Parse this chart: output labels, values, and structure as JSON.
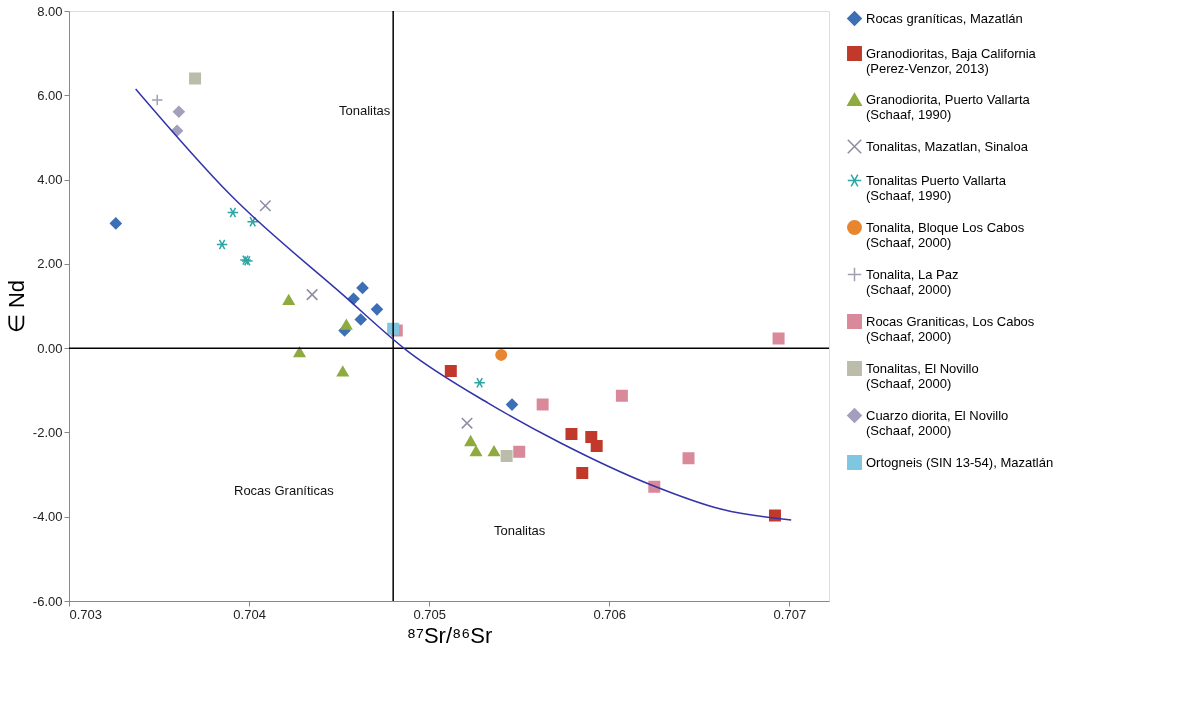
{
  "chart_data": {
    "type": "scatter",
    "xlabel": "⁸⁷Sr/⁸⁶Sr",
    "ylabel": "∈ Nd",
    "xlim": [
      0.703,
      0.70722
    ],
    "ylim": [
      -6,
      8
    ],
    "xticks": [
      {
        "value": 0.703,
        "label": "0.703"
      },
      {
        "value": 0.704,
        "label": "0.704"
      },
      {
        "value": 0.705,
        "label": "0.705"
      },
      {
        "value": 0.706,
        "label": "0.706"
      },
      {
        "value": 0.707,
        "label": "0.707"
      }
    ],
    "yticks": [
      {
        "value": -6,
        "label": "-6.00"
      },
      {
        "value": -4,
        "label": "-4.00"
      },
      {
        "value": -2,
        "label": "-2.00"
      },
      {
        "value": 0,
        "label": "0.00"
      },
      {
        "value": 2,
        "label": "2.00"
      },
      {
        "value": 4,
        "label": "4.00"
      },
      {
        "value": 6,
        "label": "6.00"
      },
      {
        "value": 8,
        "label": "8.00"
      }
    ],
    "grid": false,
    "legend": "right",
    "series": [
      {
        "name": "Rocas graníticas, Mazatlán",
        "color": "#3d6fb6",
        "marker": "diamond",
        "x": [
          0.70326,
          0.70463,
          0.70458,
          0.70471,
          0.70462,
          0.70453,
          0.70546
        ],
        "values": [
          2.96,
          1.43,
          1.17,
          0.92,
          0.68,
          0.42,
          -1.34
        ]
      },
      {
        "name": "Granodioritas, Baja California\n(Perez-Venzor, 2013)",
        "color": "#c0392b",
        "marker": "square",
        "x": [
          0.70512,
          0.70579,
          0.7059,
          0.70593,
          0.70585,
          0.70692
        ],
        "values": [
          -0.54,
          -2.04,
          -2.11,
          -2.32,
          -2.96,
          -3.97
        ]
      },
      {
        "name": "Granodiorita, Puerto Vallarta\n(Schaaf, 1990)",
        "color": "#8fab3f",
        "marker": "triangle",
        "x": [
          0.70422,
          0.70454,
          0.70428,
          0.70452,
          0.70523,
          0.70526,
          0.70536
        ],
        "values": [
          1.15,
          0.56,
          -0.09,
          -0.55,
          -2.2,
          -2.44,
          -2.44
        ]
      },
      {
        "name": "Tonalitas, Mazatlan, Sinaloa",
        "color": "#8c8ca3",
        "marker": "x",
        "x": [
          0.70409,
          0.70435,
          0.70521
        ],
        "values": [
          3.38,
          1.27,
          -1.78
        ]
      },
      {
        "name": "Tonalitas  Puerto Vallarta\n(Schaaf, 1990)",
        "color": "#2ca5a5",
        "marker": "cross",
        "x": [
          0.70391,
          0.70402,
          0.70385,
          0.70398,
          0.70399,
          0.70528
        ],
        "values": [
          3.22,
          3.0,
          2.46,
          2.09,
          2.07,
          -0.82
        ]
      },
      {
        "name": "Tonalita, Bloque Los Cabos\n(Schaaf, 2000)",
        "color": "#e8862f",
        "marker": "circle",
        "x": [
          0.7054
        ],
        "values": [
          -0.16
        ]
      },
      {
        "name": "Tonalita, La Paz\n(Schaaf, 2000)",
        "color": "#a0a0b0",
        "marker": "plus",
        "x": [
          0.70349
        ],
        "values": [
          5.89
        ]
      },
      {
        "name": "Rocas Graniticas, Los Cabos\n(Schaaf, 2000)",
        "color": "#d9899a",
        "marker": "square",
        "x": [
          0.70482,
          0.70563,
          0.7055,
          0.70607,
          0.70644,
          0.70625,
          0.70694
        ],
        "values": [
          0.42,
          -1.34,
          -2.46,
          -1.13,
          -2.61,
          -3.29,
          0.23
        ]
      },
      {
        "name": "Tonalitas, El Novillo\n(Schaaf, 2000)",
        "color": "#bcbcaa",
        "marker": "square",
        "x": [
          0.7037,
          0.70543
        ],
        "values": [
          6.4,
          -2.56
        ]
      },
      {
        "name": "Cuarzo diorita, El Novillo\n(Schaaf, 2000)",
        "color": "#a39fbd",
        "marker": "diamond",
        "x": [
          0.70361,
          0.7036
        ],
        "values": [
          5.61,
          5.16
        ]
      },
      {
        "name": "Ortogneis (SIN 13-54), Mazatlán",
        "color": "#7fc6e0",
        "marker": "square",
        "x": [
          0.7048
        ],
        "values": [
          0.46
        ]
      },
      {
        "type": "line",
        "color": "#3333aa",
        "marker": "none",
        "x": [
          0.70337,
          0.7039,
          0.70452,
          0.70488,
          0.70533,
          0.70573,
          0.70623,
          0.70663,
          0.70701
        ],
        "values": [
          6.15,
          3.62,
          1.27,
          -0.07,
          -1.31,
          -2.25,
          -3.24,
          -3.83,
          -4.08
        ]
      }
    ],
    "ref_lines": [
      {
        "axis": "x",
        "value": 0.7048,
        "color": "#000000"
      },
      {
        "axis": "y",
        "value": 0,
        "color": "#000000"
      }
    ],
    "annotations": [
      "Tonalitas",
      "Rocas Graníticas",
      "Tonalitas"
    ]
  }
}
